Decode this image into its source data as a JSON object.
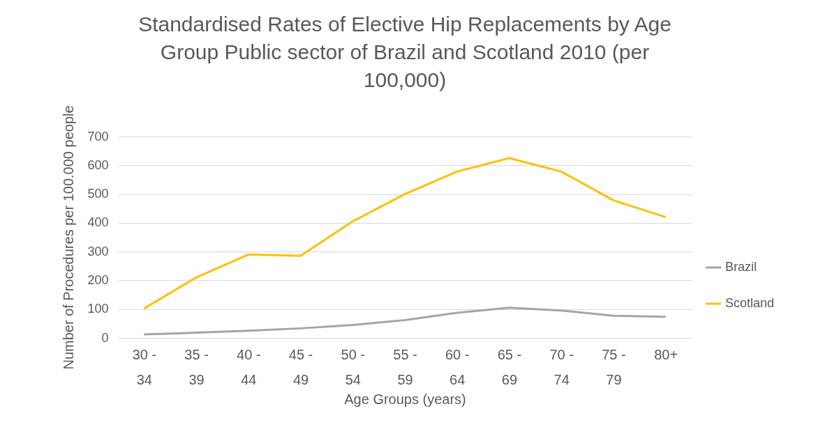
{
  "chart_data": {
    "type": "line",
    "title": "Standardised Rates of Elective Hip Replacements by Age Group Public sector of Brazil and Scotland 2010 (per 100,000)",
    "xlabel": "Age Groups (years)",
    "ylabel": "Number of Procedures per 100.000 people",
    "categories": [
      "30 - 34",
      "35 - 39",
      "40 - 44",
      "45 - 49",
      "50 - 54",
      "55 - 59",
      "60 - 64",
      "65 - 69",
      "70 - 74",
      "75 - 79",
      "80+"
    ],
    "series": [
      {
        "name": "Brazil",
        "color": "#a5a5a5",
        "values": [
          12,
          18,
          25,
          33,
          45,
          62,
          87,
          105,
          95,
          77,
          73
        ]
      },
      {
        "name": "Scotland",
        "color": "#ffc000",
        "values": [
          102,
          210,
          290,
          285,
          405,
          500,
          578,
          625,
          578,
          478,
          420
        ]
      }
    ],
    "ylim": [
      0,
      700
    ],
    "yticks": [
      0,
      100,
      200,
      300,
      400,
      500,
      600,
      700
    ],
    "grid": "y",
    "legend": "right",
    "marker": "none",
    "line_style": "solid"
  }
}
